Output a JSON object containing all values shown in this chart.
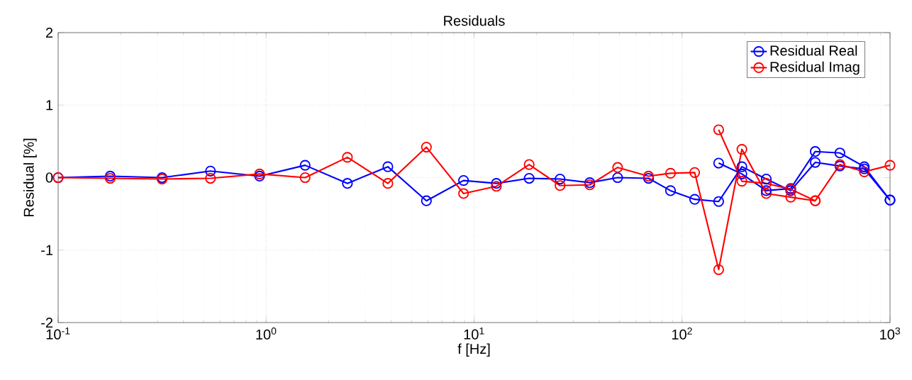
{
  "chart_data": {
    "type": "line",
    "title": "Residuals",
    "xlabel": "f [Hz]",
    "ylabel": "Residual [%]",
    "log": "x",
    "grid": true,
    "legend": "top right",
    "marker": "circle",
    "line_style": "solid",
    "xlim": [
      0.1,
      1000
    ],
    "ylim": [
      -2,
      2
    ],
    "xticks": [
      {
        "value": 0.1,
        "label": "10$^{-1}$"
      },
      {
        "value": 1,
        "label": "10$^{0}$"
      },
      {
        "value": 10,
        "label": "10$^{1}$"
      },
      {
        "value": 100,
        "label": "10$^{2}$"
      },
      {
        "value": 1000,
        "label": "10$^{3}$"
      }
    ],
    "yticks": [
      -2,
      -1,
      0,
      1,
      2
    ],
    "series": [
      {
        "name": "Residual Real",
        "color": "#0000ff",
        "x": [
          0.1,
          0.178,
          0.316,
          0.54,
          0.93,
          1.54,
          2.46,
          3.85,
          5.9,
          8.9,
          12.8,
          18.4,
          25.9,
          36,
          49,
          69,
          88,
          115,
          150,
          194,
          254,
          333,
          437,
          574,
          752,
          1000
        ],
        "values": [
          0,
          0.02,
          0,
          0.09,
          0.02,
          0.17,
          -0.08,
          0.15,
          -0.32,
          -0.04,
          -0.08,
          -0.01,
          -0.02,
          -0.07,
          0,
          -0.01,
          -0.18,
          -0.3,
          -0.33,
          0.15,
          -0.02,
          -0.18,
          0.21,
          0.16,
          0.12,
          -0.31
        ]
      },
      {
        "name": "Residual Imag",
        "color": "#ff0000",
        "x": [
          0.1,
          0.178,
          0.316,
          0.54,
          0.93,
          1.54,
          2.46,
          3.85,
          5.9,
          8.9,
          12.8,
          18.4,
          25.9,
          36,
          49,
          69,
          88,
          115,
          150,
          194,
          254,
          333,
          437,
          574,
          752,
          1000
        ],
        "values": [
          0,
          -0.01,
          -0.02,
          -0.01,
          0.05,
          0,
          0.28,
          -0.08,
          0.42,
          -0.22,
          -0.12,
          0.18,
          -0.11,
          -0.1,
          0.14,
          0.02,
          0.06,
          0.07,
          -1.27,
          0.39,
          -0.22,
          -0.27,
          -0.32,
          0.18,
          0.08,
          0.17
        ]
      },
      {
        "color": "#0000ff",
        "x": [
          150,
          194,
          254,
          333,
          437,
          574,
          752,
          1000
        ],
        "values": [
          0.2,
          0.05,
          -0.18,
          -0.15,
          0.36,
          0.34,
          0.15,
          -0.31
        ]
      },
      {
        "color": "#ff0000",
        "x": [
          150,
          194,
          254,
          333,
          437
        ],
        "values": [
          0.66,
          -0.05,
          -0.08,
          -0.16,
          -0.32
        ]
      }
    ]
  }
}
